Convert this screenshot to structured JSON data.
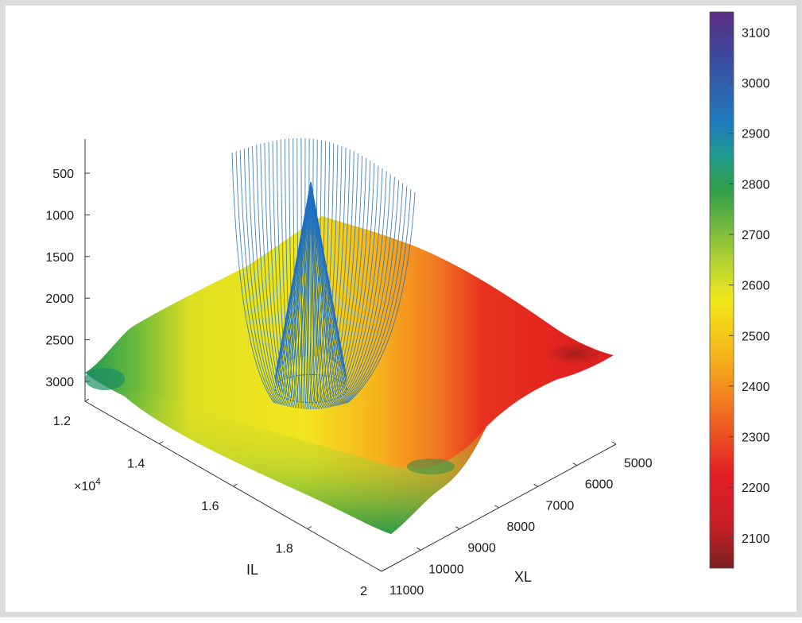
{
  "chart_data": {
    "type": "surface-3d",
    "xlabel": "XL",
    "ylabel": "IL",
    "zlabel": "",
    "x_ticks": [
      "5000",
      "6000",
      "7000",
      "8000",
      "9000",
      "10000",
      "11000"
    ],
    "y_ticks": [
      "1.2",
      "1.4",
      "1.6",
      "1.8",
      "2"
    ],
    "y_multiplier": "×10",
    "y_multiplier_exp": "4",
    "z_ticks": [
      "500",
      "1000",
      "1500",
      "2000",
      "2500",
      "3000"
    ],
    "z_reversed": true,
    "colorbar_ticks": [
      "3100",
      "3000",
      "2900",
      "2800",
      "2700",
      "2600",
      "2500",
      "2400",
      "2300",
      "2200",
      "2100"
    ],
    "colorbar_range": [
      2040,
      3140
    ],
    "colormap": [
      "#7a1f1f",
      "#e31e24",
      "#f26d21",
      "#f7b21b",
      "#f2e718",
      "#b5d334",
      "#3fae49",
      "#1f9a6a",
      "#1f7bbf",
      "#2a4fa3",
      "#5b2c83"
    ],
    "surface_colors": {
      "left": "#1e9a5a",
      "center": "#f0e420",
      "right": "#e8261f",
      "front": "#3aa83f"
    },
    "well_path_color": "#1f6fc1"
  }
}
